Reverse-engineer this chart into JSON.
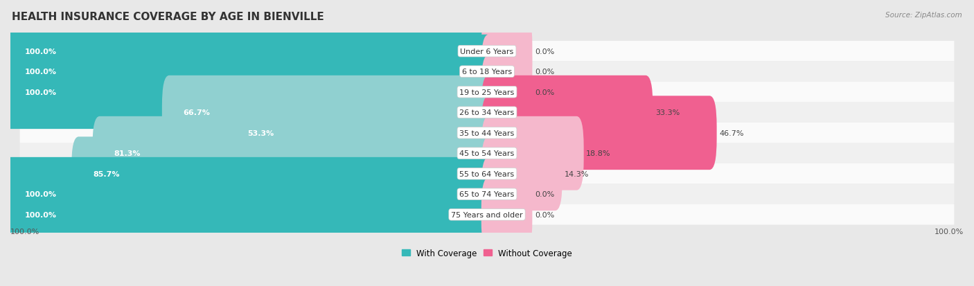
{
  "title": "HEALTH INSURANCE COVERAGE BY AGE IN BIENVILLE",
  "source": "Source: ZipAtlas.com",
  "categories": [
    "Under 6 Years",
    "6 to 18 Years",
    "19 to 25 Years",
    "26 to 34 Years",
    "35 to 44 Years",
    "45 to 54 Years",
    "55 to 64 Years",
    "65 to 74 Years",
    "75 Years and older"
  ],
  "with_coverage": [
    100.0,
    100.0,
    100.0,
    66.7,
    53.3,
    81.3,
    85.7,
    100.0,
    100.0
  ],
  "without_coverage": [
    0.0,
    0.0,
    0.0,
    33.3,
    46.7,
    18.8,
    14.3,
    0.0,
    0.0
  ],
  "color_with_full": "#35b8b8",
  "color_with_light": "#90d0d0",
  "color_without_full": "#f06090",
  "color_without_light": "#f5b8cc",
  "bg_odd": "#f0f0f0",
  "bg_even": "#fafafa",
  "label_inside_color": "#ffffff",
  "label_outside_color": "#444444",
  "cat_label_color": "#333333",
  "title_color": "#333333",
  "source_color": "#888888",
  "footer_color": "#555555",
  "title_fontsize": 11,
  "bar_label_fontsize": 8,
  "cat_label_fontsize": 8,
  "legend_fontsize": 8.5,
  "footer_fontsize": 8
}
